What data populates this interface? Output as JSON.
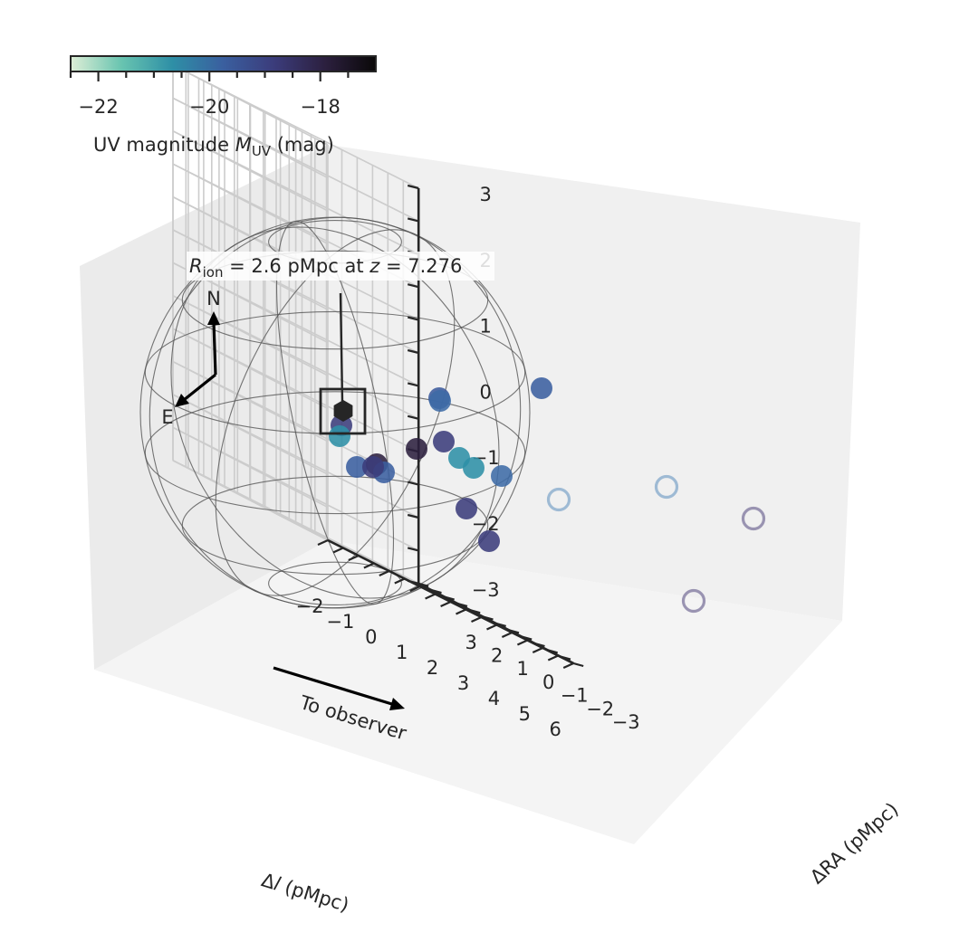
{
  "chart_data": {
    "type": "scatter3d",
    "axes": {
      "x": {
        "label_main": "Δ",
        "label_italic": "l",
        "label_unit": " (pMpc)",
        "ticks": [
          "−2",
          "−1",
          "0",
          "1",
          "2",
          "3",
          "4",
          "5",
          "6"
        ],
        "range": [
          -2,
          6
        ]
      },
      "y": {
        "label": "ΔRA (pMpc)",
        "ticks": [
          "−3",
          "−2",
          "−1",
          "0",
          "1",
          "2",
          "3"
        ],
        "range": [
          -3,
          3
        ]
      },
      "z": {
        "label": "",
        "ticks": [
          "−3",
          "−2",
          "−1",
          "0",
          "1",
          "2",
          "3"
        ],
        "range": [
          -3,
          3
        ]
      }
    },
    "grid": true,
    "colorbar": {
      "label_text": "UV magnitude ",
      "label_symbol": "M",
      "label_sub": "UV",
      "label_unit": " (mag)",
      "ticks": [
        "−22",
        "−20",
        "−18"
      ],
      "tick_values": [
        -22,
        -20,
        -18
      ],
      "range": [
        -22.5,
        -17
      ],
      "colormap": [
        "#deeed6",
        "#68c4b0",
        "#2e8fa6",
        "#3a5f9f",
        "#3b3c7b",
        "#2c203f",
        "#0a0808"
      ]
    },
    "sphere": {
      "radius": 2.6,
      "center": [
        0,
        0,
        0
      ]
    },
    "annotation": {
      "symbol": "R",
      "sub": "ion",
      "text_mid": " = 2.6 pMpc at ",
      "z_symbol": "z",
      "z_text": " = 7.276"
    },
    "compass": {
      "north": "N",
      "east": "E"
    },
    "observer_label": "To observer",
    "central_source": {
      "marker": "hexagon",
      "color": "#262626"
    },
    "galaxies_filled": [
      {
        "color": "#3a5f9f"
      },
      {
        "color": "#3b5a9c"
      },
      {
        "color": "#3d6ba6"
      },
      {
        "color": "#2c203f"
      },
      {
        "color": "#3b3c7b"
      },
      {
        "color": "#2e8fa6"
      },
      {
        "color": "#2e8fa6"
      },
      {
        "color": "#3d6ba6"
      },
      {
        "color": "#3a5f9f"
      },
      {
        "color": "#2c203f"
      },
      {
        "color": "#3a5f9f"
      },
      {
        "color": "#3b3c7b"
      },
      {
        "color": "#3b3c7b"
      },
      {
        "color": "#3b3c7b"
      },
      {
        "color": "#2e8fa6"
      },
      {
        "color": "#3b3c7b"
      }
    ],
    "galaxies_open": [
      {
        "color": "#8fb0cf"
      },
      {
        "color": "#8fb0cf"
      },
      {
        "color": "#8a82a6"
      },
      {
        "color": "#8a82a6"
      }
    ]
  }
}
